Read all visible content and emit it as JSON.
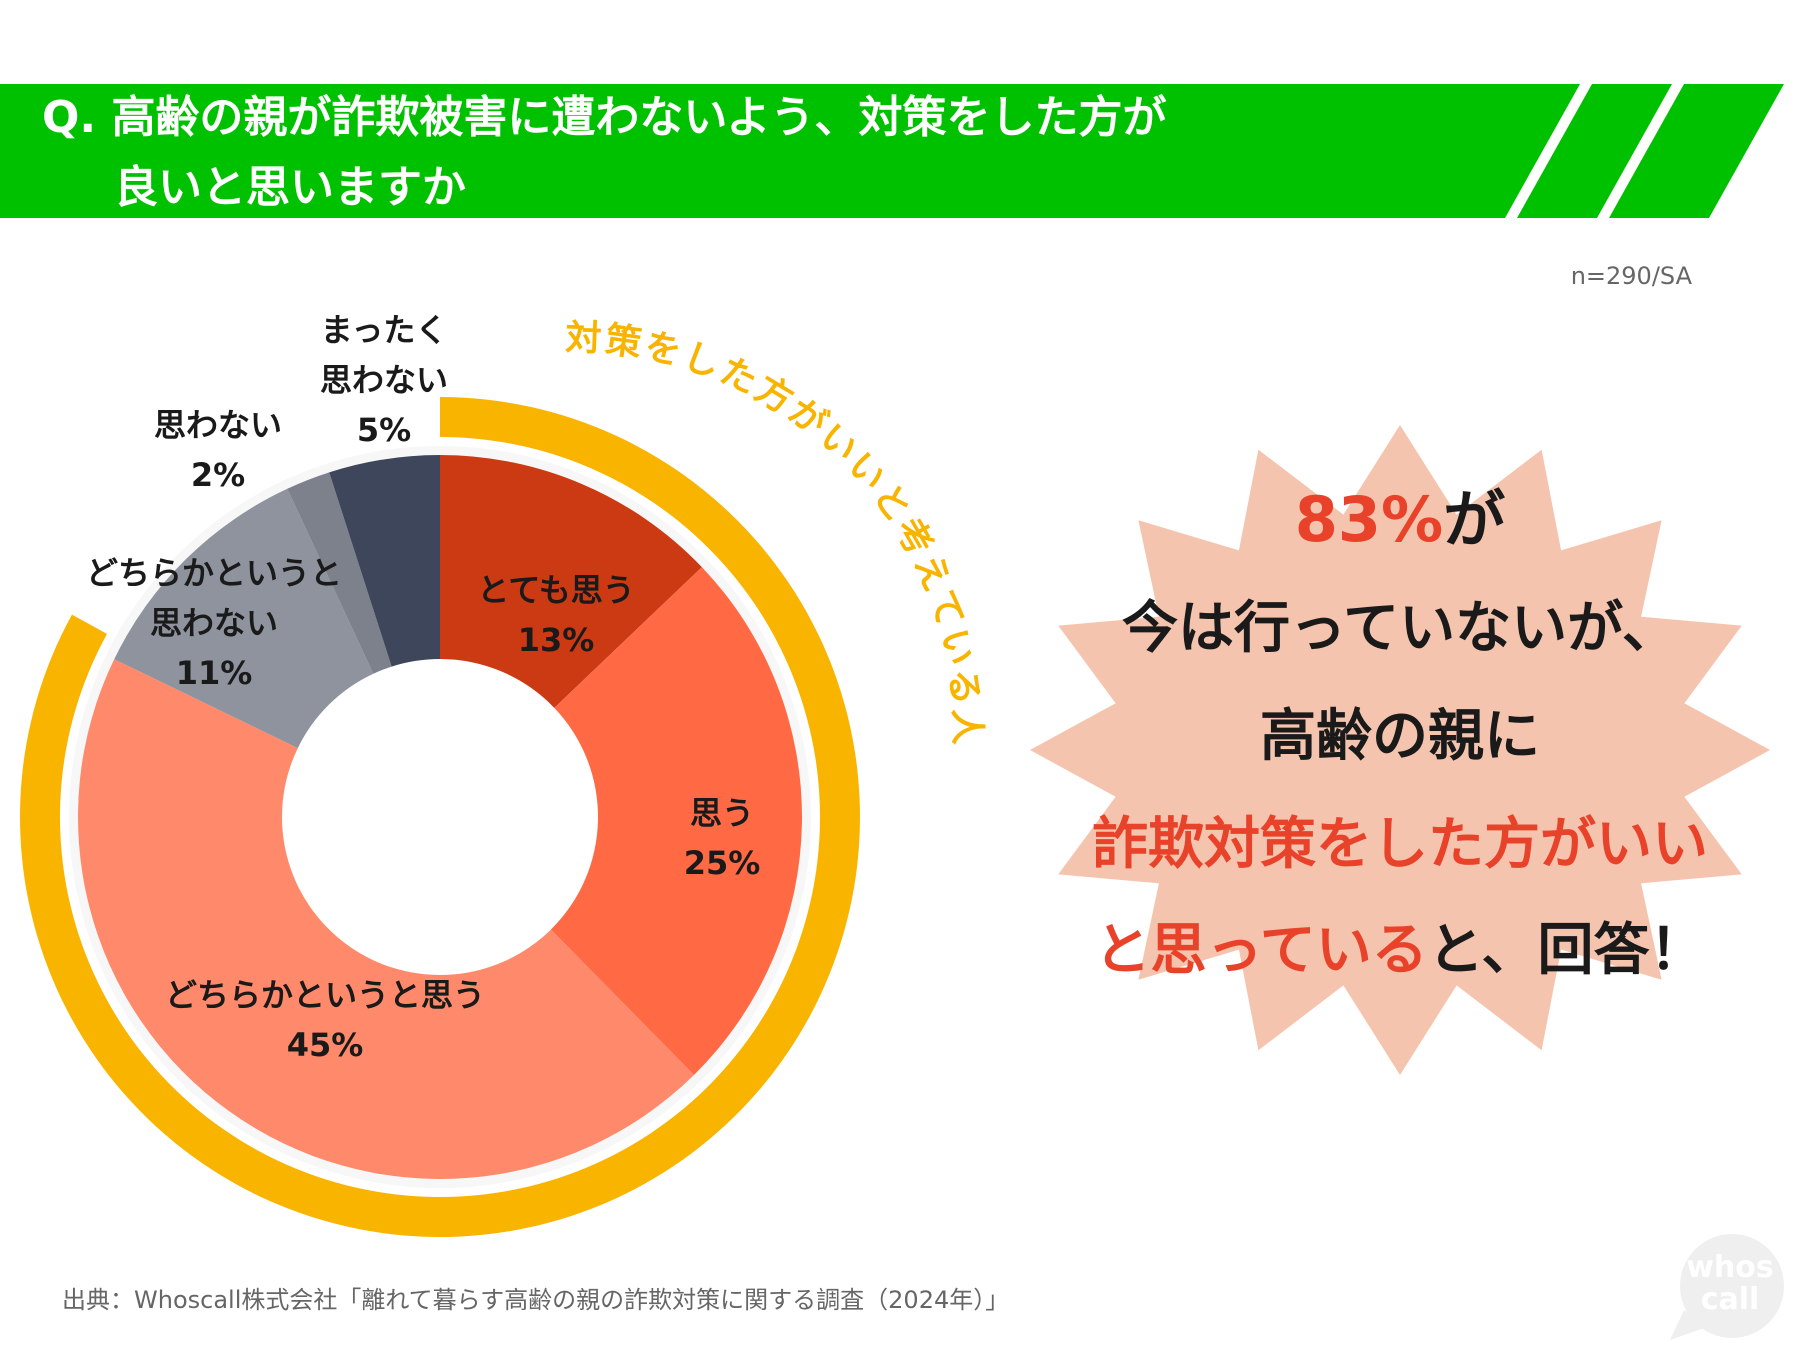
{
  "question": {
    "line1": "Q. 高齢の親が詐欺被害に遭わないよう、対策をした方が",
    "line2": "良いと思いますか"
  },
  "sample": "n=290/SA",
  "arc_label": "対策をした方がいいと考えている人",
  "colors": {
    "banner": "#00C100",
    "outer_ring": "#F9B400",
    "accent_red": "#E8432A",
    "burst": "#F5C4AE"
  },
  "chart_data": {
    "type": "pie",
    "subtype": "donut",
    "start": "top",
    "direction": "clockwise",
    "categories": [
      "とても思う",
      "思う",
      "どちらかというと思う",
      "どちらかというと思わない",
      "思わない",
      "まったく思わない"
    ],
    "values": [
      13,
      25,
      45,
      11,
      2,
      5
    ],
    "labels": [
      {
        "lines": [
          "とても思う"
        ],
        "pct": "13%"
      },
      {
        "lines": [
          "思う"
        ],
        "pct": "25%"
      },
      {
        "lines": [
          "どちらかというと思う"
        ],
        "pct": "45%"
      },
      {
        "lines": [
          "どちらかというと",
          "思わない"
        ],
        "pct": "11%"
      },
      {
        "lines": [
          "思わない"
        ],
        "pct": "2%"
      },
      {
        "lines": [
          "まったく",
          "思わない"
        ],
        "pct": "5%"
      }
    ],
    "colors": [
      "#CC3A14",
      "#FF6A45",
      "#FF8A6B",
      "#8E939E",
      "#7C818C",
      "#3D465A"
    ],
    "outer_ring": {
      "label": "対策をした方がいいと考えている人",
      "value": 83
    }
  },
  "callout": {
    "line1_highlight": "83%",
    "line1_rest": "が",
    "line2": "今は行っていないが、",
    "line3": "高齢の親に",
    "line4": "詐欺対策をした方がいい",
    "line5_highlight": "と思っている",
    "line5_rest": "と、回答！"
  },
  "source": "出典：Whoscall株式会社「離れて暮らす高齢の親の詐欺対策に関する調査（2024年）」",
  "logo": {
    "line1": "whos",
    "line2": "call"
  }
}
